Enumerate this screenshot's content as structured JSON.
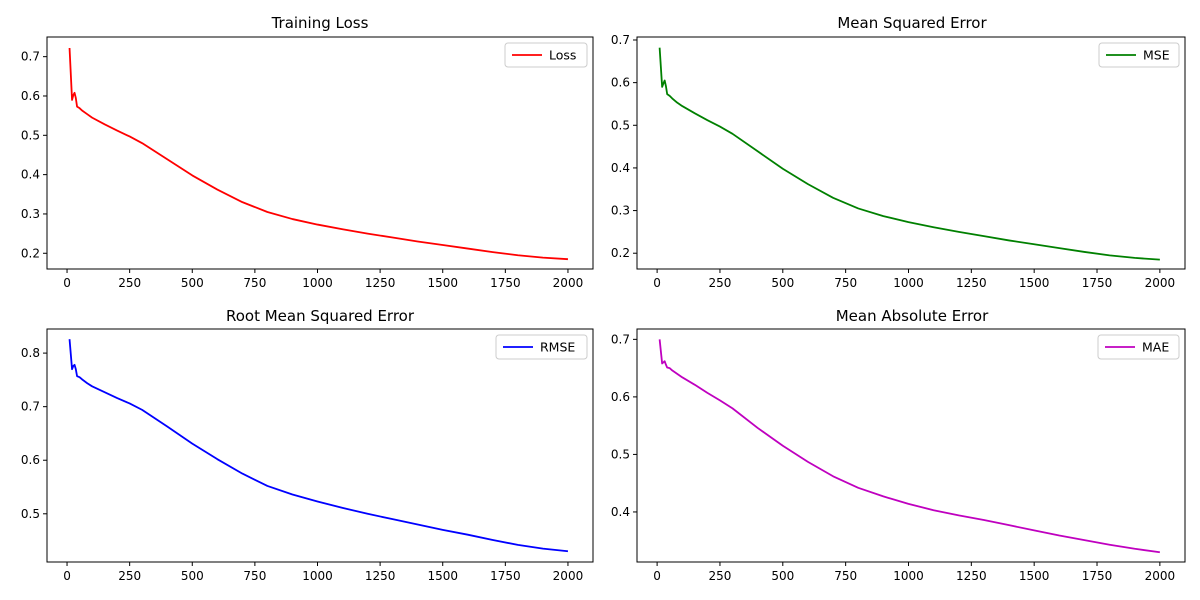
{
  "chart_data": [
    {
      "type": "line",
      "title": "Training Loss",
      "xlabel": "",
      "ylabel": "",
      "xlim": [
        -80,
        2100
      ],
      "ylim": [
        0.16,
        0.75
      ],
      "xticks": [
        0,
        250,
        500,
        750,
        1000,
        1250,
        1500,
        1750,
        2000
      ],
      "yticks": [
        0.2,
        0.3,
        0.4,
        0.5,
        0.6,
        0.7
      ],
      "ytick_format": 1,
      "grid": false,
      "legend": "top-right",
      "series": [
        {
          "name": "Loss",
          "color": "#ff0000",
          "x": [
            10,
            20,
            25,
            30,
            35,
            40,
            50,
            60,
            80,
            100,
            150,
            200,
            250,
            300,
            400,
            500,
            600,
            700,
            800,
            900,
            1000,
            1100,
            1200,
            1300,
            1400,
            1500,
            1600,
            1700,
            1800,
            1900,
            2000
          ],
          "y": [
            0.722,
            0.59,
            0.602,
            0.608,
            0.595,
            0.573,
            0.569,
            0.563,
            0.554,
            0.545,
            0.528,
            0.512,
            0.497,
            0.48,
            0.439,
            0.398,
            0.362,
            0.33,
            0.305,
            0.287,
            0.273,
            0.261,
            0.25,
            0.24,
            0.23,
            0.221,
            0.212,
            0.203,
            0.195,
            0.189,
            0.185
          ]
        }
      ]
    },
    {
      "type": "line",
      "title": "Mean Squared Error",
      "xlabel": "",
      "ylabel": "",
      "xlim": [
        -80,
        2100
      ],
      "ylim": [
        0.163,
        0.707
      ],
      "xticks": [
        0,
        250,
        500,
        750,
        1000,
        1250,
        1500,
        1750,
        2000
      ],
      "yticks": [
        0.2,
        0.3,
        0.4,
        0.5,
        0.6,
        0.7
      ],
      "ytick_format": 1,
      "grid": false,
      "legend": "top-right",
      "series": [
        {
          "name": "MSE",
          "color": "#008000",
          "x": [
            10,
            20,
            25,
            30,
            35,
            40,
            50,
            60,
            80,
            100,
            150,
            200,
            250,
            300,
            400,
            500,
            600,
            700,
            800,
            900,
            1000,
            1100,
            1200,
            1300,
            1400,
            1500,
            1600,
            1700,
            1800,
            1900,
            2000
          ],
          "y": [
            0.682,
            0.59,
            0.598,
            0.605,
            0.592,
            0.573,
            0.569,
            0.563,
            0.553,
            0.545,
            0.528,
            0.512,
            0.497,
            0.48,
            0.439,
            0.398,
            0.362,
            0.33,
            0.305,
            0.287,
            0.273,
            0.261,
            0.25,
            0.24,
            0.23,
            0.221,
            0.212,
            0.203,
            0.195,
            0.189,
            0.185
          ]
        }
      ]
    },
    {
      "type": "line",
      "title": "Root Mean Squared Error",
      "xlabel": "",
      "ylabel": "",
      "xlim": [
        -80,
        2100
      ],
      "ylim": [
        0.41,
        0.845
      ],
      "xticks": [
        0,
        250,
        500,
        750,
        1000,
        1250,
        1500,
        1750,
        2000
      ],
      "yticks": [
        0.5,
        0.6,
        0.7,
        0.8
      ],
      "ytick_format": 1,
      "grid": false,
      "legend": "top-right",
      "series": [
        {
          "name": "RMSE",
          "color": "#0000ff",
          "x": [
            10,
            20,
            25,
            30,
            35,
            40,
            50,
            60,
            80,
            100,
            150,
            200,
            250,
            300,
            400,
            500,
            600,
            700,
            800,
            900,
            1000,
            1100,
            1200,
            1300,
            1400,
            1500,
            1600,
            1700,
            1800,
            1900,
            2000
          ],
          "y": [
            0.826,
            0.77,
            0.776,
            0.778,
            0.77,
            0.757,
            0.755,
            0.751,
            0.744,
            0.738,
            0.727,
            0.716,
            0.706,
            0.694,
            0.663,
            0.631,
            0.602,
            0.575,
            0.552,
            0.536,
            0.523,
            0.511,
            0.5,
            0.49,
            0.48,
            0.47,
            0.461,
            0.451,
            0.442,
            0.435,
            0.43
          ]
        }
      ]
    },
    {
      "type": "line",
      "title": "Mean Absolute Error",
      "xlabel": "",
      "ylabel": "",
      "xlim": [
        -80,
        2100
      ],
      "ylim": [
        0.313,
        0.718
      ],
      "xticks": [
        0,
        250,
        500,
        750,
        1000,
        1250,
        1500,
        1750,
        2000
      ],
      "yticks": [
        0.4,
        0.5,
        0.6,
        0.7
      ],
      "ytick_format": 1,
      "grid": false,
      "legend": "top-right",
      "series": [
        {
          "name": "MAE",
          "color": "#bf00bf",
          "x": [
            10,
            20,
            25,
            30,
            35,
            40,
            50,
            60,
            80,
            100,
            150,
            200,
            250,
            300,
            400,
            500,
            600,
            700,
            800,
            900,
            1000,
            1100,
            1200,
            1300,
            1400,
            1500,
            1600,
            1700,
            1800,
            1900,
            2000
          ],
          "y": [
            0.7,
            0.658,
            0.66,
            0.662,
            0.656,
            0.651,
            0.65,
            0.646,
            0.64,
            0.634,
            0.621,
            0.607,
            0.594,
            0.58,
            0.546,
            0.515,
            0.487,
            0.462,
            0.442,
            0.427,
            0.414,
            0.403,
            0.394,
            0.386,
            0.377,
            0.368,
            0.359,
            0.351,
            0.343,
            0.336,
            0.33
          ]
        }
      ]
    }
  ]
}
